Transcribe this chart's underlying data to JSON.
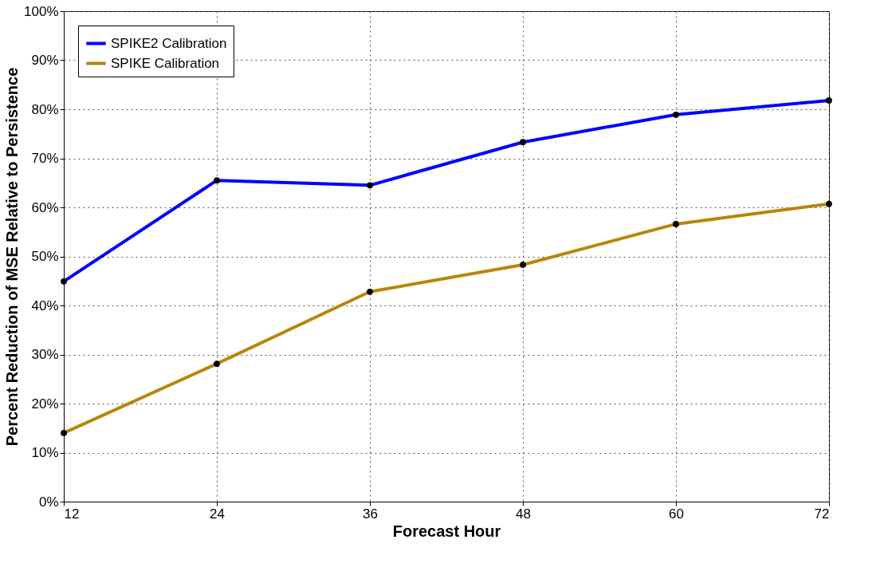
{
  "chart_data": {
    "type": "line",
    "xlabel": "Forecast Hour",
    "ylabel": "Percent Reduction of MSE Relative to Persistence",
    "x": [
      12,
      24,
      36,
      48,
      60,
      72
    ],
    "series": [
      {
        "name": "SPIKE2 Calibration",
        "color": "#0000ff",
        "values": [
          44.9,
          65.5,
          64.5,
          73.3,
          78.9,
          81.8
        ]
      },
      {
        "name": "SPIKE Calibration",
        "color": "#b8860b",
        "values": [
          14.0,
          28.1,
          42.8,
          48.3,
          56.6,
          60.7
        ]
      }
    ],
    "xlim": [
      12,
      72
    ],
    "xticks": [
      12,
      24,
      36,
      48,
      60,
      72
    ],
    "ylim": [
      0,
      100
    ],
    "yticks": [
      {
        "value": 0,
        "label": "0%"
      },
      {
        "value": 10,
        "label": "10%"
      },
      {
        "value": 20,
        "label": "20%"
      },
      {
        "value": 30,
        "label": "30%"
      },
      {
        "value": 40,
        "label": "40%"
      },
      {
        "value": 50,
        "label": "50%"
      },
      {
        "value": 60,
        "label": "60%"
      },
      {
        "value": 70,
        "label": "70%"
      },
      {
        "value": 80,
        "label": "80%"
      },
      {
        "value": 90,
        "label": "90%"
      },
      {
        "value": 100,
        "label": "100%"
      }
    ],
    "grid": true,
    "legend": "top left",
    "marker": "circle",
    "line_style": "solid"
  }
}
